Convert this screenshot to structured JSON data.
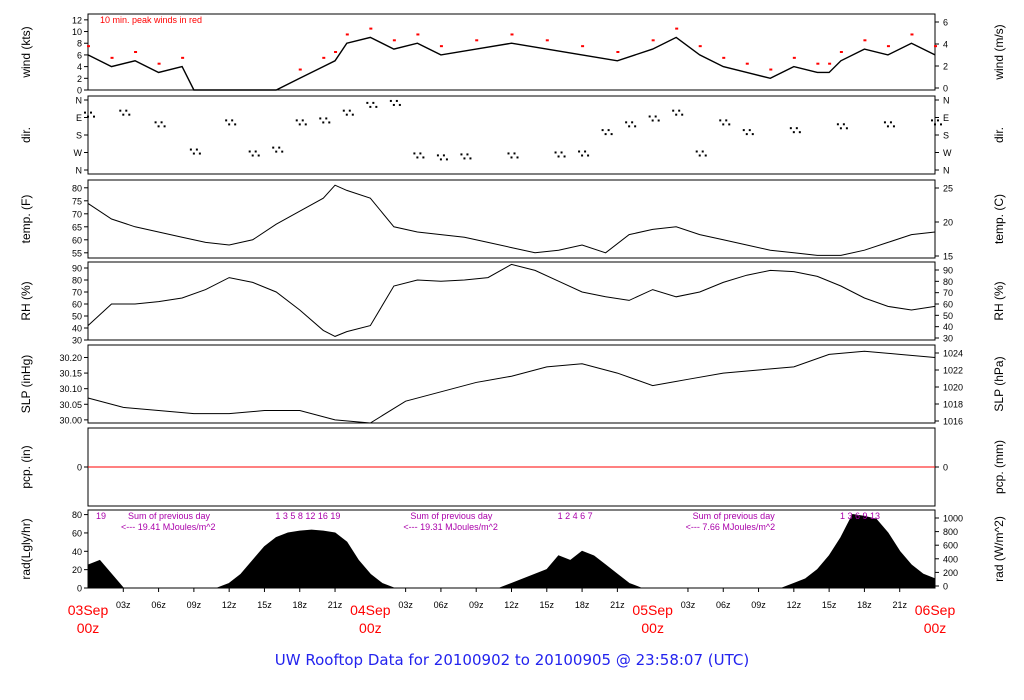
{
  "footer_title": "UW Rooftop Data for 20100902  to  20100905 @ 23:58:07  (UTC)",
  "colors": {
    "axis": "#000000",
    "trace": "#000000",
    "peak": "#ff0000",
    "zero_line": "#ff0000",
    "annotation": "#aa00aa",
    "date_labels": "#ff0000",
    "footer": "#2323ee"
  },
  "chart_data": [
    {
      "type": "line",
      "panel": "wind",
      "ylabel_left": "wind (kts)",
      "ylabel_right": "wind (m/s)",
      "ylim": [
        0,
        13
      ],
      "yticks_left": [
        "0",
        "2",
        "4",
        "6",
        "8",
        "10",
        "12"
      ],
      "yticks_right": [
        "0",
        "2",
        "4",
        "6"
      ],
      "legend": "10 min. peak winds in red",
      "series": [
        {
          "x": [
            0,
            2,
            4,
            6,
            8,
            9,
            12,
            15,
            16,
            18,
            20,
            21,
            22,
            24,
            26,
            28,
            30,
            33,
            36,
            39,
            42,
            45,
            48,
            50,
            52,
            54,
            56,
            58,
            60,
            62,
            63,
            64,
            66,
            68,
            70,
            72
          ],
          "values": [
            6,
            4,
            5,
            3,
            4,
            0,
            0,
            0,
            0,
            2,
            4,
            5,
            8,
            9,
            7,
            8,
            6,
            7,
            8,
            7,
            6,
            5,
            7,
            9,
            6,
            4,
            3,
            2,
            4,
            3,
            3,
            5,
            7,
            6,
            8,
            6
          ]
        }
      ]
    },
    {
      "type": "scatter",
      "panel": "wind_direction",
      "ylabel_left": "dir.",
      "ylabel_right": "dir.",
      "yticks_left": [
        "N",
        "W",
        "S",
        "E",
        "N"
      ],
      "yticks_right": [
        "N",
        "W",
        "S",
        "E",
        "N"
      ],
      "series": [
        {
          "x": [
            0,
            3,
            6,
            9,
            12,
            14,
            16,
            18,
            20,
            22,
            24,
            26,
            28,
            30,
            32,
            36,
            40,
            42,
            44,
            46,
            48,
            50,
            52,
            54,
            56,
            60,
            64,
            68,
            72
          ],
          "values": [
            290,
            300,
            240,
            100,
            250,
            90,
            110,
            250,
            260,
            300,
            340,
            350,
            80,
            70,
            75,
            80,
            85,
            90,
            200,
            240,
            270,
            300,
            90,
            250,
            200,
            210,
            230,
            240,
            250
          ]
        }
      ]
    },
    {
      "type": "line",
      "panel": "temperature",
      "ylabel_left": "temp. (F)",
      "ylabel_right": "temp. (C)",
      "yticks_left": [
        "55",
        "60",
        "65",
        "70",
        "75",
        "80"
      ],
      "yticks_right": [
        "15",
        "20",
        "25"
      ],
      "ylim": [
        53,
        83
      ],
      "series": [
        {
          "x": [
            0,
            2,
            4,
            6,
            8,
            10,
            12,
            14,
            16,
            18,
            20,
            21,
            22,
            24,
            26,
            28,
            30,
            32,
            34,
            36,
            38,
            40,
            42,
            44,
            46,
            48,
            50,
            52,
            54,
            56,
            58,
            60,
            62,
            64,
            66,
            68,
            70,
            72
          ],
          "values": [
            74,
            68,
            65,
            63,
            61,
            59,
            58,
            60,
            66,
            71,
            76,
            81,
            79,
            76,
            65,
            63,
            62,
            61,
            59,
            57,
            55,
            56,
            58,
            55,
            62,
            64,
            65,
            62,
            60,
            58,
            56,
            55,
            54,
            54,
            56,
            59,
            62,
            63
          ]
        }
      ]
    },
    {
      "type": "line",
      "panel": "relative_humidity",
      "ylabel_left": "RH (%)",
      "ylabel_right": "RH (%)",
      "yticks_left": [
        "30",
        "40",
        "50",
        "60",
        "70",
        "80",
        "90"
      ],
      "yticks_right": [
        "30",
        "40",
        "50",
        "60",
        "70",
        "80",
        "90"
      ],
      "ylim": [
        30,
        95
      ],
      "series": [
        {
          "x": [
            0,
            2,
            4,
            6,
            8,
            10,
            12,
            14,
            16,
            18,
            20,
            21,
            22,
            24,
            26,
            28,
            30,
            32,
            34,
            36,
            38,
            40,
            42,
            44,
            46,
            48,
            50,
            52,
            54,
            56,
            58,
            60,
            62,
            64,
            66,
            68,
            70,
            72
          ],
          "values": [
            42,
            60,
            60,
            62,
            65,
            72,
            82,
            78,
            70,
            55,
            38,
            33,
            37,
            42,
            75,
            80,
            79,
            80,
            82,
            93,
            88,
            79,
            70,
            66,
            63,
            72,
            66,
            70,
            78,
            84,
            88,
            87,
            83,
            75,
            65,
            58,
            55,
            58
          ]
        }
      ]
    },
    {
      "type": "line",
      "panel": "sea_level_pressure",
      "ylabel_left": "SLP (inHg)",
      "ylabel_right": "SLP (hPa)",
      "yticks_left": [
        "30.00",
        "30.05",
        "30.10",
        "30.15",
        "30.20"
      ],
      "yticks_right": [
        "1016",
        "1018",
        "1020",
        "1022",
        "1024"
      ],
      "ylim": [
        29.99,
        30.24
      ],
      "series": [
        {
          "x": [
            0,
            3,
            6,
            9,
            12,
            15,
            18,
            21,
            24,
            27,
            30,
            33,
            36,
            39,
            42,
            45,
            48,
            51,
            54,
            57,
            60,
            63,
            66,
            69,
            72
          ],
          "values": [
            30.07,
            30.04,
            30.03,
            30.02,
            30.02,
            30.03,
            30.03,
            30.0,
            29.99,
            30.06,
            30.09,
            30.12,
            30.14,
            30.17,
            30.18,
            30.15,
            30.11,
            30.13,
            30.15,
            30.16,
            30.17,
            30.21,
            30.22,
            30.21,
            30.2
          ]
        }
      ]
    },
    {
      "type": "line",
      "panel": "precipitation",
      "ylabel_left": "pcp. (in)",
      "ylabel_right": "pcp. (mm)",
      "yticks_left": [
        "0"
      ],
      "yticks_right": [
        "0"
      ],
      "series": [
        {
          "x": [
            0,
            72
          ],
          "values": [
            0,
            0
          ]
        }
      ]
    },
    {
      "type": "area",
      "panel": "solar_radiation",
      "ylabel_left": "rad(Lgly/hr)",
      "ylabel_right": "rad (W/m^2)",
      "yticks_left": [
        "0",
        "20",
        "40",
        "60",
        "80"
      ],
      "yticks_right": [
        "0",
        "200",
        "400",
        "600",
        "800",
        "1000"
      ],
      "ylim": [
        0,
        85
      ],
      "annotations": [
        {
          "day": 1,
          "hours_label": "19",
          "sum_label": "Sum of previous day",
          "energy_label": "<--- 19.41 MJoules/m^2"
        },
        {
          "day": 2,
          "hours_label": "1  3  5  8  12  16   19",
          "sum_label": "Sum of previous day",
          "energy_label": "<--- 19.31 MJoules/m^2"
        },
        {
          "day": 3,
          "hours_label": "1  2  4  6  7",
          "sum_label": "Sum of previous day",
          "energy_label": "<--- 7.66 MJoules/m^2"
        },
        {
          "day": 4,
          "hours_label": "1  3  6  9  13",
          "sum_label": "",
          "energy_label": ""
        }
      ],
      "series": [
        {
          "x": [
            0,
            1,
            2,
            3,
            11,
            12,
            13,
            14,
            15,
            16,
            17,
            18,
            19,
            20,
            21,
            22,
            23,
            24,
            25,
            26,
            27,
            35,
            36,
            37,
            38,
            39,
            40,
            41,
            42,
            43,
            44,
            45,
            46,
            47,
            48,
            49,
            50,
            51,
            59,
            60,
            61,
            62,
            63,
            64,
            65,
            66,
            67,
            68,
            69,
            70,
            71,
            72
          ],
          "values": [
            25,
            30,
            15,
            0,
            0,
            5,
            15,
            30,
            45,
            55,
            60,
            62,
            63,
            62,
            60,
            50,
            30,
            15,
            5,
            0,
            0,
            0,
            5,
            10,
            15,
            20,
            35,
            30,
            40,
            35,
            25,
            15,
            5,
            0,
            0,
            0,
            0,
            0,
            0,
            5,
            10,
            20,
            35,
            55,
            80,
            78,
            75,
            60,
            40,
            25,
            15,
            10
          ]
        }
      ]
    }
  ],
  "x_axis": {
    "hour_ticks": [
      "03z",
      "06z",
      "09z",
      "12z",
      "15z",
      "18z",
      "21z",
      "03z",
      "06z",
      "09z",
      "12z",
      "15z",
      "18z",
      "21z",
      "03z",
      "06z",
      "09z",
      "12z",
      "15z",
      "18z",
      "21z"
    ],
    "date_labels": [
      {
        "day": "03Sep",
        "hour": "00z"
      },
      {
        "day": "04Sep",
        "hour": "00z"
      },
      {
        "day": "05Sep",
        "hour": "00z"
      },
      {
        "day": "06Sep",
        "hour": "00z"
      }
    ],
    "xlim": [
      0,
      72
    ]
  }
}
